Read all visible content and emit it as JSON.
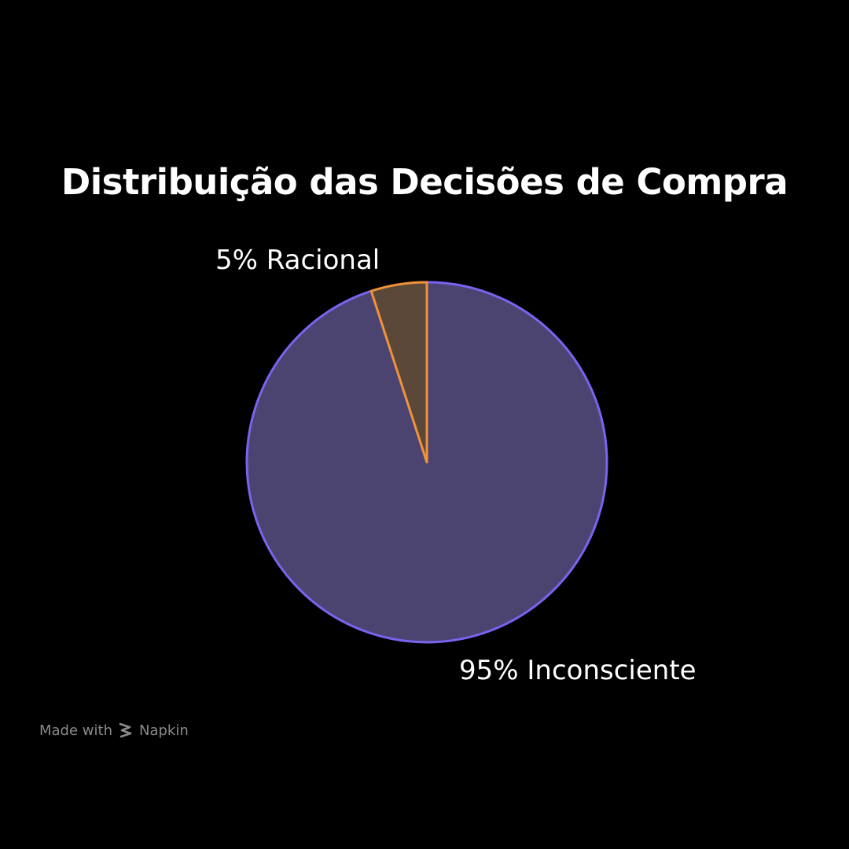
{
  "chart_data": {
    "type": "pie",
    "title": "Distribuição das Decisões de Compra",
    "slices": [
      {
        "label": "5% Racional",
        "value": 5,
        "fill": "#5c4838",
        "stroke": "#f0923a",
        "label_anchor": "start"
      },
      {
        "label": "95% Inconsciente",
        "value": 95,
        "fill": "#4c4470",
        "stroke": "#7a63f0",
        "label_anchor": "start"
      }
    ],
    "start_angle_deg": 0,
    "direction": "counterclockwise"
  },
  "watermark": {
    "made_with": "Made with",
    "brand": "Napkin",
    "logo_icon": "napkin-logo-icon"
  },
  "colors": {
    "background": "#000000",
    "title": "#ffffff",
    "label": "#ffffff",
    "watermark": "#8a8a8a"
  }
}
